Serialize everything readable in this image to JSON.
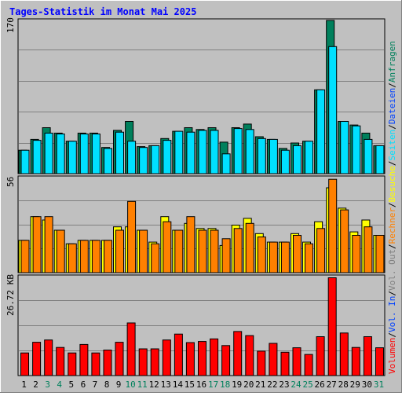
{
  "title": "Tages-Statistik im Monat Mai 2025",
  "right_legend": {
    "anfragen": "Anfragen",
    "dateien": "Dateien",
    "seiten": "Seiten",
    "besuche": "Besuche",
    "rechner": "Rechner",
    "vol_out": "Vol. Out",
    "vol_in": "Vol. In",
    "volumen": "Volumen"
  },
  "colors": {
    "anfragen": "#00805c",
    "dateien": "#00c0ff",
    "seiten": "#00e0ff",
    "besuche": "#ffff00",
    "rechner": "#ff8000",
    "vol_out": "#808080",
    "vol_in": "#0040ff",
    "volumen": "#ff0000",
    "weekend_day": "#00805c",
    "panel_bg": "#c0c0c0",
    "frame": "#808080",
    "title": "#0000ff"
  },
  "chart_data": [
    {
      "type": "bar",
      "name": "panel-anfragen-dateien",
      "y_max_label": "170",
      "ylim": [
        0,
        170
      ],
      "categories": [
        "1",
        "2",
        "3",
        "4",
        "5",
        "6",
        "7",
        "8",
        "9",
        "10",
        "11",
        "12",
        "13",
        "14",
        "15",
        "16",
        "17",
        "18",
        "19",
        "20",
        "21",
        "22",
        "23",
        "24",
        "25",
        "26",
        "27",
        "28",
        "29",
        "30",
        "31"
      ],
      "weekend_days": [
        "3",
        "4",
        "10",
        "11",
        "17",
        "18",
        "24",
        "25",
        "31"
      ],
      "series": [
        {
          "name": "Anfragen",
          "values": [
            26,
            38,
            51,
            45,
            36,
            45,
            45,
            29,
            48,
            58,
            30,
            31,
            39,
            47,
            51,
            49,
            51,
            35,
            51,
            55,
            41,
            38,
            28,
            34,
            36,
            93,
            170,
            58,
            54,
            45,
            31
          ]
        },
        {
          "name": "Dateien",
          "values": [
            26,
            37,
            45,
            44,
            36,
            44,
            44,
            28,
            46,
            36,
            29,
            31,
            37,
            47,
            46,
            48,
            48,
            22,
            50,
            49,
            39,
            38,
            26,
            31,
            36,
            93,
            141,
            58,
            53,
            38,
            31
          ]
        }
      ]
    },
    {
      "type": "bar",
      "name": "panel-besuche-rechner",
      "y_max_label": "56",
      "ylim": [
        0,
        56
      ],
      "categories": [
        "1",
        "2",
        "3",
        "4",
        "5",
        "6",
        "7",
        "8",
        "9",
        "10",
        "11",
        "12",
        "13",
        "14",
        "15",
        "16",
        "17",
        "18",
        "19",
        "20",
        "21",
        "22",
        "23",
        "24",
        "25",
        "26",
        "27",
        "28",
        "29",
        "30",
        "31"
      ],
      "series": [
        {
          "name": "Besuche",
          "values": [
            19,
            33,
            31,
            25,
            17,
            19,
            19,
            19,
            27,
            27,
            25,
            18,
            33,
            25,
            29,
            26,
            26,
            16,
            28,
            32,
            23,
            18,
            18,
            23,
            18,
            30,
            50,
            38,
            24,
            31,
            22
          ]
        },
        {
          "name": "Rechner",
          "values": [
            19,
            33,
            33,
            25,
            17,
            19,
            19,
            19,
            25,
            42,
            25,
            17,
            30,
            25,
            33,
            25,
            25,
            20,
            26,
            29,
            21,
            18,
            18,
            22,
            17,
            26,
            55,
            37,
            22,
            27,
            22
          ]
        }
      ]
    },
    {
      "type": "bar",
      "name": "panel-volumen",
      "y_max_label": "26.72 KB",
      "ylim": [
        0,
        26.72
      ],
      "categories": [
        "1",
        "2",
        "3",
        "4",
        "5",
        "6",
        "7",
        "8",
        "9",
        "10",
        "11",
        "12",
        "13",
        "14",
        "15",
        "16",
        "17",
        "18",
        "19",
        "20",
        "21",
        "22",
        "23",
        "24",
        "25",
        "26",
        "27",
        "28",
        "29",
        "30",
        "31"
      ],
      "series": [
        {
          "name": "Volumen",
          "values": [
            6.1,
            9,
            9.6,
            7.6,
            6.1,
            8.4,
            6.1,
            6.9,
            9,
            14.2,
            7.2,
            7.2,
            9.6,
            11.2,
            8.9,
            9.2,
            9.9,
            8.1,
            11.9,
            10.8,
            6.6,
            8.7,
            6.3,
            7.5,
            5.7,
            10.5,
            26.4,
            11.5,
            7.6,
            10.5,
            7.5
          ]
        }
      ]
    }
  ]
}
